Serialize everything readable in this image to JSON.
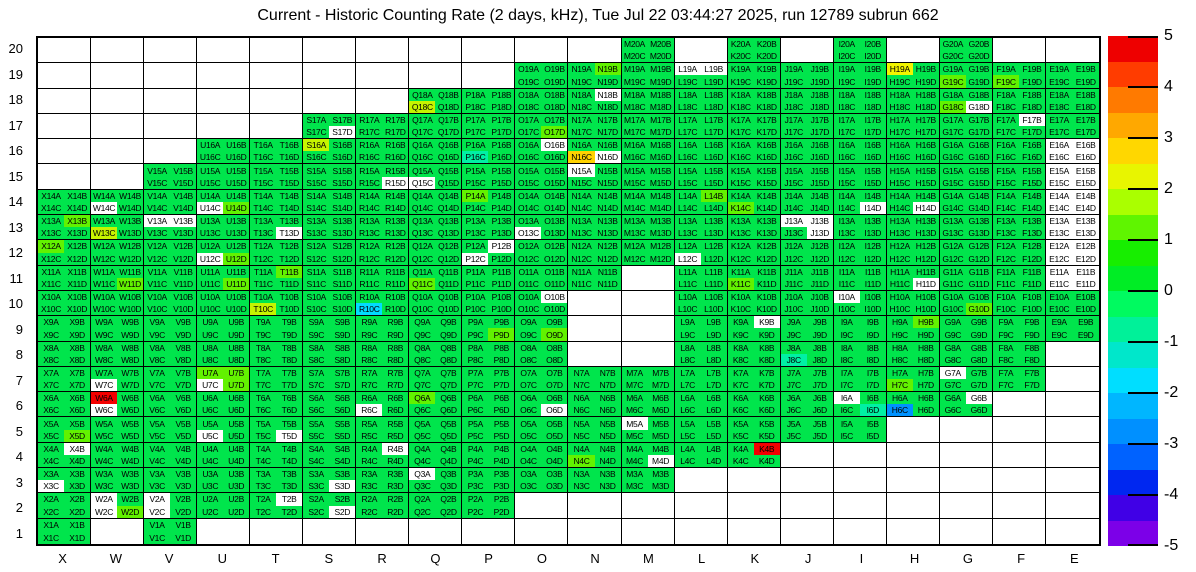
{
  "chart_data": {
    "type": "heatmap",
    "title": "Current - Historic Counting Rate (2 days, kHz), Tue Jul 22 03:44:27 2025, run 12789 subrun 662",
    "x_categories": [
      "X",
      "W",
      "V",
      "U",
      "T",
      "S",
      "R",
      "Q",
      "P",
      "O",
      "N",
      "M",
      "L",
      "K",
      "J",
      "I",
      "H",
      "G",
      "F",
      "E"
    ],
    "y_categories": [
      20,
      19,
      18,
      17,
      16,
      15,
      14,
      13,
      12,
      11,
      10,
      9,
      8,
      7,
      6,
      5,
      4,
      3,
      2,
      1
    ],
    "sublabels": [
      "A",
      "B",
      "C",
      "D"
    ],
    "value_scale": {
      "min": -5,
      "max": 5,
      "units": "kHz (current - historic)"
    },
    "palette": {
      "g": "#00E54C",
      "B": "#62F200",
      "C": "#C6F400",
      "Y": "#F2F500",
      "G": "#FFD200",
      "R": "#F40000",
      "c": "#00DCFF",
      "b": "#0092FF",
      "t": "#00F0A4",
      "w": "#FFFFFF"
    },
    "colorbar": {
      "ticks": [
        "5",
        "4",
        "3",
        "2",
        "1",
        "0",
        "-1",
        "-2",
        "-3",
        "-4",
        "-5"
      ],
      "bands": [
        "#EE0000",
        "#FF3C00",
        "#FF7A00",
        "#FFA800",
        "#FFD700",
        "#E8F500",
        "#AAFF00",
        "#5FF500",
        "#17EE00",
        "#00ED25",
        "#00FA60",
        "#00F199",
        "#00E7CB",
        "#00DEFF",
        "#00B6FF",
        "#0090FF",
        "#0062FF",
        "#0027F0",
        "#4000E6",
        "#7C00E8"
      ]
    },
    "cells": {
      "20": {
        "M": "gggg",
        "K": "gggg",
        "I": "gggg",
        "G": "gggg"
      },
      "19": {
        "O": "gggg",
        "N": "gBgg",
        "M": "gggg",
        "L": "wwgg",
        "K": "gggg",
        "J": "gggg",
        "I": "gggg",
        "H": "Yggg",
        "G": "ggBg",
        "F": "ggBg",
        "E": "gggg"
      },
      "18": {
        "Q": "ggCg",
        "P": "gggg",
        "O": "gggg",
        "N": "gwgg",
        "M": "gggg",
        "L": "gggg",
        "K": "gggg",
        "J": "gggg",
        "I": "gggg",
        "H": "gggg",
        "G": "ggBw",
        "F": "gggg",
        "E": "gggg"
      },
      "17": {
        "S": "gggw",
        "R": "gggg",
        "Q": "gggg",
        "P": "gggg",
        "O": "gggB",
        "N": "gggg",
        "M": "gggg",
        "L": "gggg",
        "K": "gggg",
        "J": "gggg",
        "I": "gggg",
        "H": "gggg",
        "G": "gggg",
        "F": "gwgg",
        "E": "gggg"
      },
      "16": {
        "U": "gggg",
        "T": "gggg",
        "S": "Cggg",
        "R": "gggg",
        "Q": "gggg",
        "P": "ggtg",
        "O": "gwgg",
        "N": "ggGw",
        "M": "gggg",
        "L": "gggg",
        "K": "gggg",
        "J": "gggg",
        "I": "gggg",
        "H": "gggg",
        "G": "gggg",
        "F": "gggg",
        "E": "wwww"
      },
      "15": {
        "V": "gggg",
        "U": "gggg",
        "T": "gggg",
        "S": "gggg",
        "R": "gggw",
        "Q": "ggwg",
        "P": "gggg",
        "O": "gggg",
        "N": "wggg",
        "M": "gggg",
        "L": "gggg",
        "K": "gggg",
        "J": "gggg",
        "I": "gggg",
        "H": "gggg",
        "G": "gggg",
        "F": "gggg",
        "E": "wwww"
      },
      "14": {
        "X": "gggg",
        "W": "ggwg",
        "V": "gggg",
        "U": "ggwB",
        "T": "gggg",
        "S": "gggg",
        "R": "gggg",
        "Q": "gggg",
        "P": "Bggg",
        "O": "gggg",
        "N": "gggg",
        "M": "gggg",
        "L": "gBgg",
        "K": "ggBg",
        "J": "gggg",
        "I": "gggw",
        "H": "gggw",
        "G": "gggg",
        "F": "gggg",
        "E": "wwww"
      },
      "13": {
        "X": "gBgg",
        "W": "ggCg",
        "V": "wwgg",
        "U": "gggg",
        "T": "gggw",
        "S": "gggg",
        "R": "gggg",
        "Q": "gggg",
        "P": "gggg",
        "O": "ggwg",
        "N": "gggg",
        "M": "gggg",
        "L": "gggg",
        "K": "gggg",
        "J": "wwgw",
        "I": "gggg",
        "H": "gggg",
        "G": "gggg",
        "F": "gggg",
        "E": "wwww"
      },
      "12": {
        "X": "Bggg",
        "W": "gggg",
        "V": "gggg",
        "U": "ggwB",
        "T": "gggg",
        "S": "gggg",
        "R": "gggg",
        "Q": "gggg",
        "P": "gwwg",
        "O": "gggg",
        "N": "gggg",
        "M": "gggg",
        "L": "ggwg",
        "K": "gggg",
        "J": "gggg",
        "I": "gggg",
        "H": "gggg",
        "G": "gggg",
        "F": "gggg",
        "E": "wwww"
      },
      "11": {
        "X": "gggg",
        "W": "gggB",
        "V": "gggg",
        "U": "gggB",
        "T": "gBgg",
        "S": "gggg",
        "R": "gggg",
        "Q": "ggBg",
        "P": "gggg",
        "O": "gggg",
        "N": "gggg",
        "L": "gggg",
        "K": "ggBg",
        "J": "gggg",
        "I": "gggg",
        "H": "gggw",
        "G": "gggg",
        "F": "gggg",
        "E": "wwww"
      },
      "10": {
        "X": "gggg",
        "W": "gggg",
        "V": "gggg",
        "U": "gggg",
        "T": "ggCg",
        "S": "gggg",
        "R": "ggcg",
        "Q": "gggg",
        "P": "gggg",
        "O": "gwgg",
        "L": "gggg",
        "K": "gggg",
        "J": "gggg",
        "I": "wggg",
        "H": "gggg",
        "G": "gggB",
        "F": "gggg",
        "E": "gggg"
      },
      "9": {
        "X": "gggg",
        "W": "gggg",
        "V": "gggg",
        "U": "gggg",
        "T": "gggg",
        "S": "gggg",
        "R": "gggg",
        "Q": "gggg",
        "P": "gggB",
        "O": "gggB",
        "L": "gggg",
        "K": "gwgg",
        "J": "gggg",
        "I": "gggg",
        "H": "gBgg",
        "G": "gggg",
        "F": "gggg",
        "E": "gggg"
      },
      "8": {
        "X": "gggg",
        "W": "gggg",
        "V": "gggg",
        "U": "gggg",
        "T": "gggg",
        "S": "gggg",
        "R": "gggg",
        "Q": "gggg",
        "P": "gggg",
        "O": "gggg",
        "L": "gggg",
        "K": "gggg",
        "J": "ggtg",
        "I": "gggg",
        "H": "gggg",
        "G": "gggg",
        "F": "gggg"
      },
      "7": {
        "X": "gggg",
        "W": "ggwg",
        "V": "gggg",
        "U": "BBwB",
        "T": "gggg",
        "S": "gggg",
        "R": "gggg",
        "Q": "gggg",
        "P": "gggg",
        "O": "gggg",
        "N": "gggg",
        "M": "gggg",
        "L": "gggg",
        "K": "gggg",
        "J": "gggg",
        "I": "gggg",
        "H": "ggBg",
        "G": "wggg",
        "F": "gggg"
      },
      "6": {
        "X": "gggg",
        "W": "Rgwg",
        "V": "gggg",
        "U": "gggg",
        "T": "gggg",
        "S": "gggg",
        "R": "ggwg",
        "Q": "Bggg",
        "P": "gggg",
        "O": "gggw",
        "N": "gggg",
        "M": "gggg",
        "L": "gggg",
        "K": "gggg",
        "J": "gggg",
        "I": "wggt",
        "H": "ggbg",
        "G": "gwgg"
      },
      "5": {
        "X": "gggB",
        "W": "gggg",
        "V": "gggg",
        "U": "ggwg",
        "T": "gggw",
        "S": "gggg",
        "R": "gggg",
        "Q": "gggg",
        "P": "gggg",
        "O": "gggg",
        "N": "gggg",
        "M": "wggg",
        "L": "gggg",
        "K": "gggg",
        "J": "gggg",
        "I": "gggg"
      },
      "4": {
        "X": "gwgg",
        "W": "gggg",
        "V": "gggg",
        "U": "gggg",
        "T": "gggg",
        "S": "gggg",
        "R": "gwgg",
        "Q": "gggg",
        "P": "gggg",
        "O": "gggg",
        "N": "ggBg",
        "M": "gggw",
        "L": "gggg",
        "K": "gRgg"
      },
      "3": {
        "X": "ggwg",
        "W": "gggg",
        "V": "gggg",
        "U": "gggg",
        "T": "gggg",
        "S": "gggw",
        "R": "gggg",
        "Q": "wggg",
        "P": "gggg",
        "O": "gggg",
        "N": "gggg",
        "M": "gggg"
      },
      "2": {
        "X": "gggg",
        "W": "wgwB",
        "V": "wgwg",
        "U": "gggg",
        "T": "gwgg",
        "S": "gggw",
        "R": "gggg",
        "Q": "gggg",
        "P": "gggg"
      },
      "1": {
        "X": "gggg",
        "V": "gggg"
      }
    }
  }
}
